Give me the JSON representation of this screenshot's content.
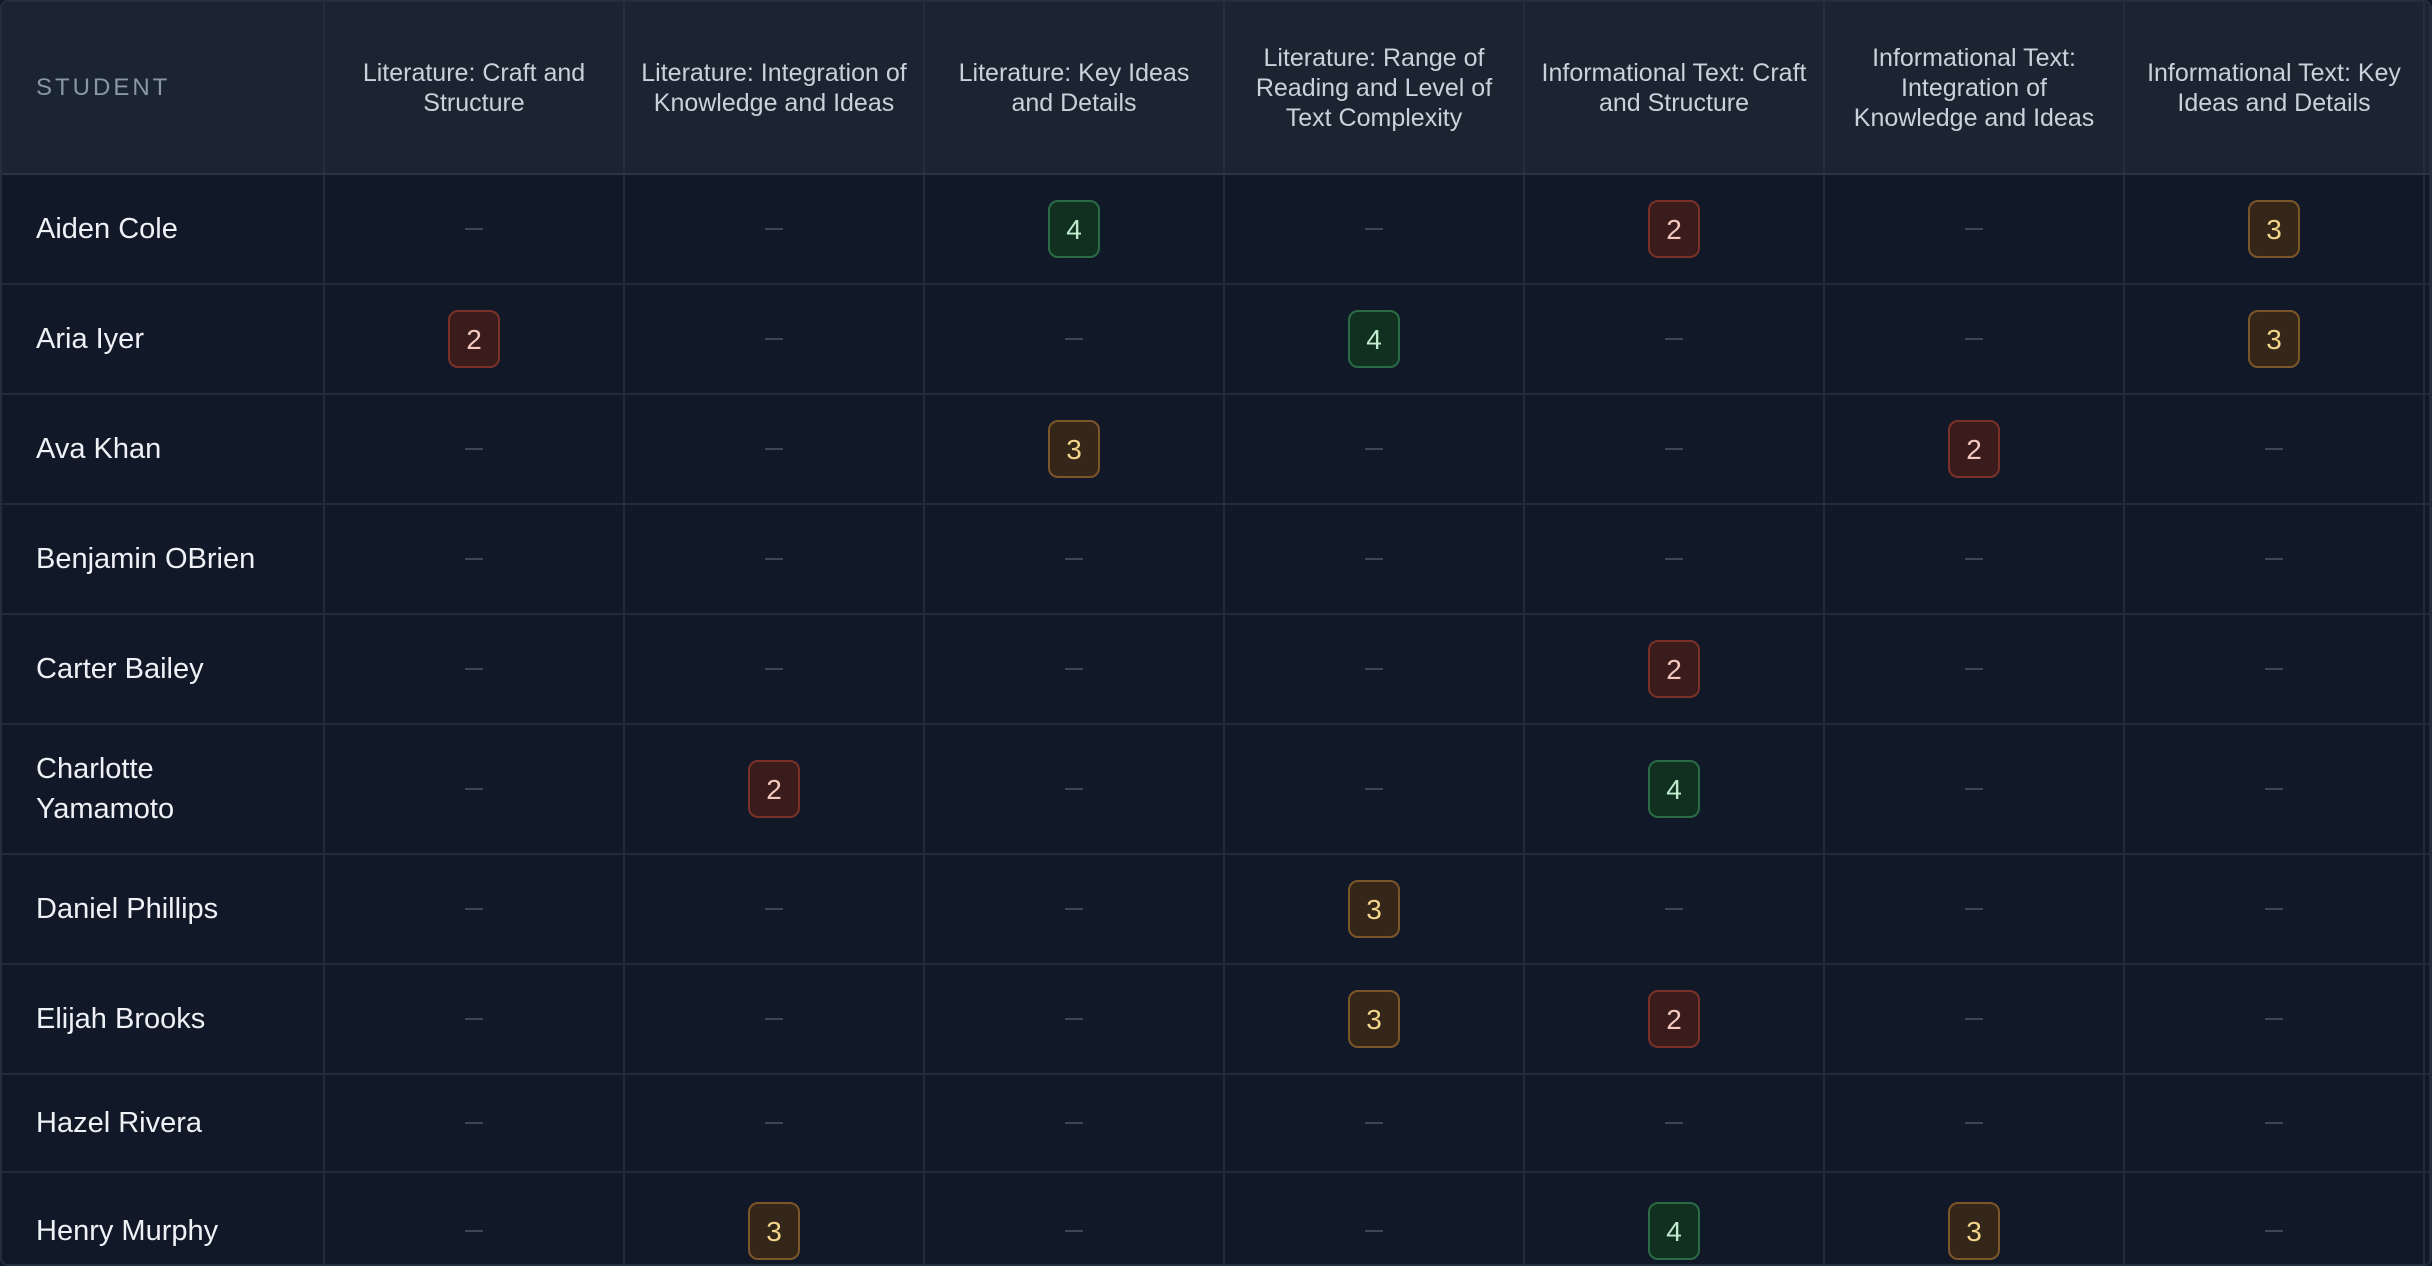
{
  "header": {
    "student": "STUDENT",
    "standards": [
      "Literature: Craft and Structure",
      "Literature: Integration of Knowledge and Ideas",
      "Literature: Key Ideas and Details",
      "Literature: Range of Reading and Level of Text Complexity",
      "Informational Text: Craft and Structure",
      "Informational Text: Integration of Knowledge and Ideas",
      "Informational Text: Key Ideas and Details"
    ]
  },
  "rows": [
    {
      "name": "Aiden Cole",
      "scores": [
        null,
        null,
        4,
        null,
        2,
        null,
        3
      ]
    },
    {
      "name": "Aria Iyer",
      "scores": [
        2,
        null,
        null,
        4,
        null,
        null,
        3
      ]
    },
    {
      "name": "Ava Khan",
      "scores": [
        null,
        null,
        3,
        null,
        null,
        2,
        null
      ]
    },
    {
      "name": "Benjamin OBrien",
      "scores": [
        null,
        null,
        null,
        null,
        null,
        null,
        null
      ]
    },
    {
      "name": "Carter Bailey",
      "scores": [
        null,
        null,
        null,
        null,
        2,
        null,
        null
      ]
    },
    {
      "name": "Charlotte Yamamoto",
      "scores": [
        null,
        2,
        null,
        null,
        4,
        null,
        null
      ]
    },
    {
      "name": "Daniel Phillips",
      "scores": [
        null,
        null,
        null,
        3,
        null,
        null,
        null
      ]
    },
    {
      "name": "Elijah Brooks",
      "scores": [
        null,
        null,
        null,
        3,
        2,
        null,
        null
      ]
    },
    {
      "name": "Hazel Rivera",
      "scores": [
        null,
        null,
        null,
        null,
        null,
        null,
        null
      ]
    },
    {
      "name": "Henry Murphy",
      "scores": [
        null,
        3,
        null,
        null,
        4,
        3,
        null
      ]
    }
  ],
  "colors": {
    "score_2": "#7a3128",
    "score_3": "#7b5628",
    "score_4": "#2b6b45",
    "background": "#111827",
    "header_background": "#1b2431"
  }
}
